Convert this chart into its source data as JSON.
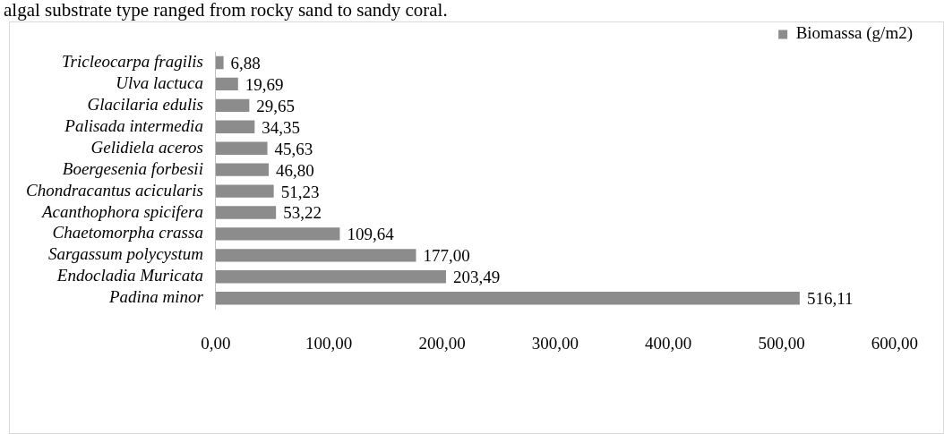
{
  "chart_data": {
    "type": "bar",
    "orientation": "horizontal",
    "categories": [
      "Tricleocarpa fragilis",
      "Ulva lactuca",
      "Glacilaria edulis",
      "Palisada intermedia",
      "Gelidiela aceros",
      "Boergesenia forbesii",
      "Chondracantus acicularis",
      "Acanthophora spicifera",
      "Chaetomorpha crassa",
      "Sargassum polycystum",
      "Endocladia Muricata",
      "Padina minor"
    ],
    "series": [
      {
        "name": "Biomassa (g/m2)",
        "color": "#8c8c8c",
        "values": [
          6.88,
          19.69,
          29.65,
          34.35,
          45.63,
          46.8,
          51.23,
          53.22,
          109.64,
          177.0,
          203.49,
          516.11
        ],
        "value_labels": [
          "6,88",
          "19,69",
          "29,65",
          "34,35",
          "45,63",
          "46,80",
          "51,23",
          "53,22",
          "109,64",
          "177,00",
          "203,49",
          "516,11"
        ]
      }
    ],
    "xlim": [
      0,
      600
    ],
    "xticks": [
      {
        "value": 0,
        "label": "0,00"
      },
      {
        "value": 100,
        "label": "100,00"
      },
      {
        "value": 200,
        "label": "200,00"
      },
      {
        "value": 300,
        "label": "300,00"
      },
      {
        "value": 400,
        "label": "400,00"
      },
      {
        "value": 500,
        "label": "500,00"
      },
      {
        "value": 600,
        "label": "600,00"
      }
    ],
    "grid": false,
    "legend": "top right",
    "annotations": [
      "algal substrate type ranged from rocky sand to sandy coral."
    ]
  }
}
